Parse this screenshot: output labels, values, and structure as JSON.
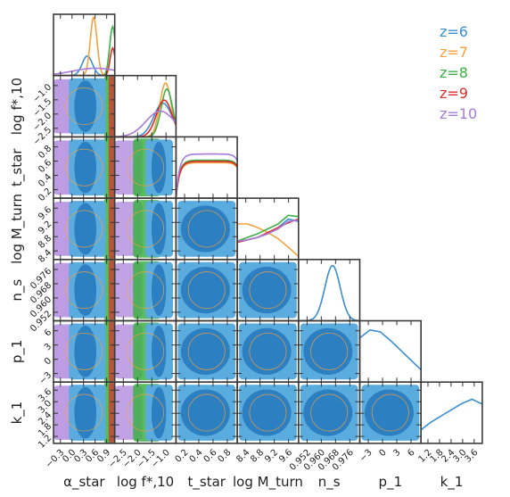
{
  "chart_data": {
    "type": "corner",
    "parameters": [
      {
        "key": "alpha_star",
        "label": "α_star",
        "ticks": [
          "−0.3",
          "0.0",
          "0.3",
          "0.6",
          "0.9"
        ],
        "range": [
          -0.45,
          1.0
        ]
      },
      {
        "key": "log_fstar10",
        "label": "log f*,10",
        "ticks": [
          "−2.5",
          "−2.0",
          "−1.5",
          "−1.0"
        ],
        "range": [
          -2.9,
          -0.55
        ]
      },
      {
        "key": "t_star",
        "label": "t_star",
        "ticks": [
          "0.2",
          "0.4",
          "0.6",
          "0.8"
        ],
        "range": [
          0.05,
          0.95
        ]
      },
      {
        "key": "logM_turn",
        "label": "log M_turn",
        "ticks": [
          "8.4",
          "8.8",
          "9.2",
          "9.6"
        ],
        "range": [
          8.2,
          9.95
        ]
      },
      {
        "key": "n_s",
        "label": "n_s",
        "ticks": [
          "0.952",
          "0.960",
          "0.968",
          "0.976"
        ],
        "range": [
          0.948,
          0.984
        ]
      },
      {
        "key": "p1",
        "label": "p_1",
        "ticks": [
          "−3",
          "0",
          "3",
          "6"
        ],
        "range": [
          -4.5,
          8.0
        ]
      },
      {
        "key": "k1",
        "label": "k_1",
        "ticks": [
          "1.2",
          "1.8",
          "2.4",
          "3.0",
          "3.6"
        ],
        "range": [
          1.05,
          3.95
        ]
      }
    ],
    "series": [
      {
        "name": "z=6",
        "color": "#3a8fd0"
      },
      {
        "name": "z=7",
        "color": "#f5a23c"
      },
      {
        "name": "z=8",
        "color": "#3cb044"
      },
      {
        "name": "z=9",
        "color": "#dc2c2c"
      },
      {
        "name": "z=10",
        "color": "#a77bd9"
      }
    ],
    "marginals": {
      "alpha_star": {
        "z=6": {
          "type": "gauss",
          "mu": 0.35,
          "sigma": 0.12,
          "peak": 0.32
        },
        "z=7": {
          "type": "gauss",
          "mu": 0.5,
          "sigma": 0.08,
          "peak": 0.95
        },
        "z=8": {
          "type": "gauss",
          "mu": 0.95,
          "sigma": 0.07,
          "peak": 0.8
        },
        "z=9": {
          "type": "gauss",
          "mu": 0.95,
          "sigma": 0.06,
          "peak": 0.45
        },
        "z=10": {
          "type": "gauss",
          "mu": 0.55,
          "sigma": 0.55,
          "peak": 0.12
        }
      },
      "log_fstar10": {
        "z=6": {
          "type": "gauss",
          "mu": -1.05,
          "sigma": 0.35,
          "peak": 0.55
        },
        "z=7": {
          "type": "gauss",
          "mu": -0.95,
          "sigma": 0.22,
          "peak": 0.88
        },
        "z=8": {
          "type": "gauss",
          "mu": -0.9,
          "sigma": 0.22,
          "peak": 0.78
        },
        "z=9": {
          "type": "gauss",
          "mu": -1.0,
          "sigma": 0.3,
          "peak": 0.6
        },
        "z=10": {
          "type": "gauss",
          "mu": -1.15,
          "sigma": 0.55,
          "peak": 0.42
        }
      },
      "t_star": {
        "z=6": {
          "type": "flat",
          "level": 0.6
        },
        "z=7": {
          "type": "flat",
          "level": 0.58
        },
        "z=8": {
          "type": "flat",
          "level": 0.62
        },
        "z=9": {
          "type": "flat",
          "level": 0.6
        },
        "z=10": {
          "type": "flat",
          "level": 0.72
        }
      },
      "logM_turn": {
        "z=6": {
          "type": "poly",
          "y": [
            0.28,
            0.32,
            0.36,
            0.42,
            0.52,
            0.66,
            0.62
          ]
        },
        "z=7": {
          "type": "poly",
          "y": [
            0.58,
            0.58,
            0.52,
            0.44,
            0.34,
            0.2,
            0.05
          ]
        },
        "z=8": {
          "type": "poly",
          "y": [
            0.3,
            0.36,
            0.42,
            0.5,
            0.58,
            0.72,
            0.7
          ]
        },
        "z=9": {
          "type": "poly",
          "y": [
            0.28,
            0.32,
            0.36,
            0.44,
            0.52,
            0.6,
            0.66
          ]
        },
        "z=10": {
          "type": "poly",
          "y": [
            0.3,
            0.32,
            0.36,
            0.42,
            0.5,
            0.62,
            0.64
          ]
        }
      },
      "n_s": {
        "z=6": {
          "type": "gauss",
          "mu": 0.968,
          "sigma": 0.0045,
          "peak": 0.9
        }
      },
      "p1": {
        "z=6": {
          "type": "poly",
          "y": [
            0.72,
            0.85,
            0.82,
            0.68,
            0.52,
            0.36,
            0.2
          ]
        }
      },
      "k1": {
        "z=6": {
          "type": "poly",
          "y": [
            0.22,
            0.35,
            0.45,
            0.55,
            0.65,
            0.72,
            0.64
          ]
        }
      }
    }
  }
}
